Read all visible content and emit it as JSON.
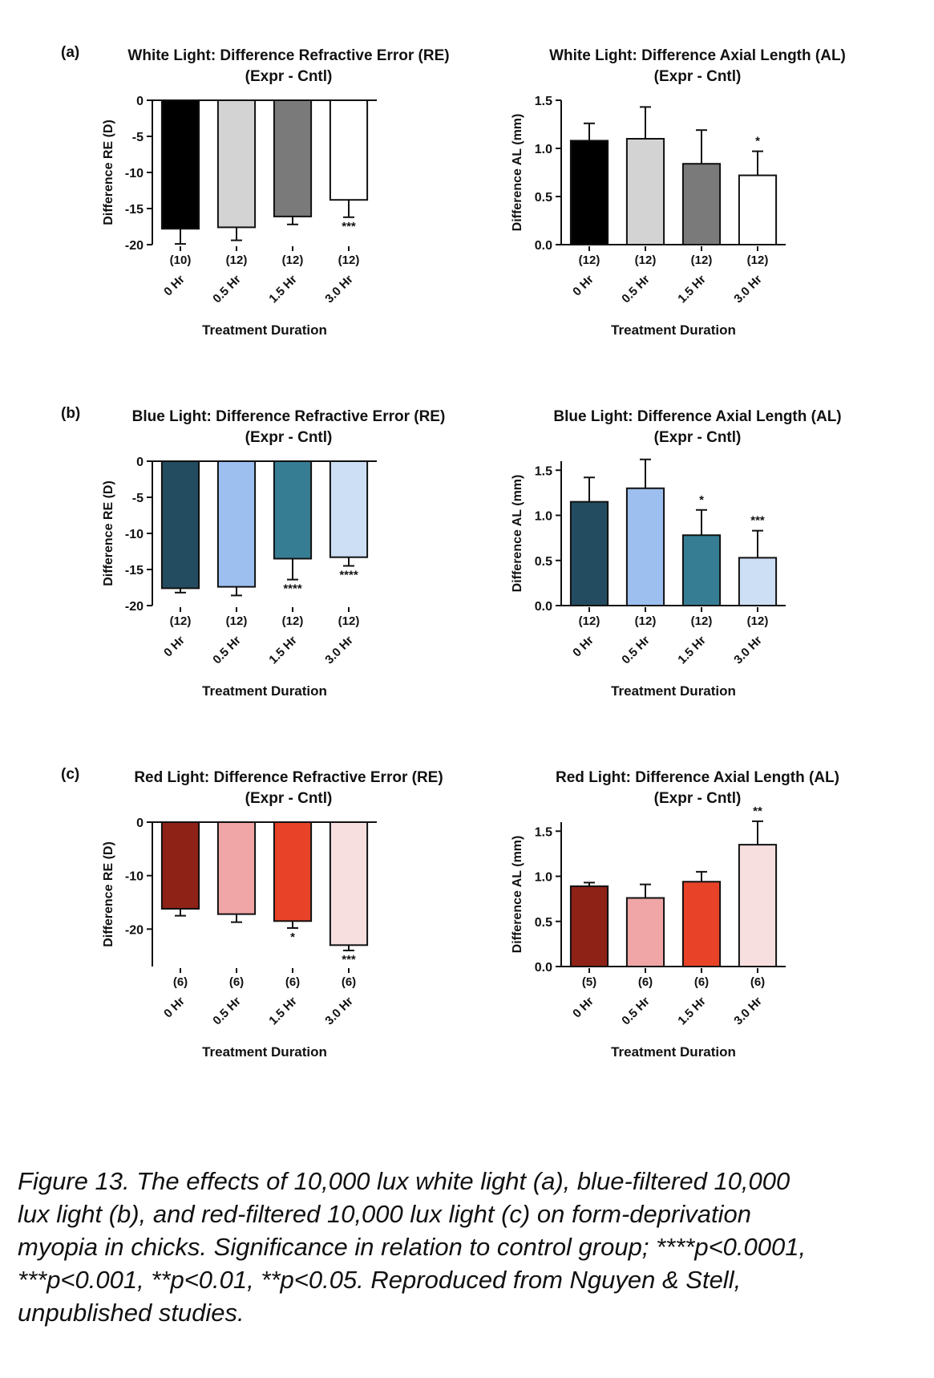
{
  "chart_data": [
    {
      "panel": "(a)",
      "type": "bar",
      "title": "White Light: Difference Refractive Error (RE)",
      "subtitle": "(Expr - Cntl)",
      "xlabel": "Treatment  Duration",
      "ylabel": "Difference RE (D)",
      "ylim": [
        -20,
        0
      ],
      "yticks": [
        0,
        -5,
        -10,
        -15,
        -20
      ],
      "categories": [
        "0 Hr",
        "0.5 Hr",
        "1.5 Hr",
        "3.0 Hr"
      ],
      "n_labels": [
        "(10)",
        "(12)",
        "(12)",
        "(12)"
      ],
      "values": [
        -17.8,
        -17.6,
        -16.1,
        -13.8
      ],
      "errors": [
        2.1,
        1.8,
        1.1,
        2.4
      ],
      "significance": [
        "",
        "",
        "",
        "***"
      ],
      "colors": [
        "#000000",
        "#d3d3d3",
        "#7a7a7a",
        "#ffffff"
      ]
    },
    {
      "type": "bar",
      "title": "White Light: Difference Axial Length (AL)",
      "subtitle": "(Expr - Cntl)",
      "xlabel": "Treatment  Duration",
      "ylabel": "Difference AL (mm)",
      "ylim": [
        0,
        1.5
      ],
      "yticks": [
        0.0,
        0.5,
        1.0,
        1.5
      ],
      "ytick_labels": [
        "0.0",
        "0.5",
        "1.0",
        "1.5"
      ],
      "categories": [
        "0 Hr",
        "0.5 Hr",
        "1.5 Hr",
        "3.0 Hr"
      ],
      "n_labels": [
        "(12)",
        "(12)",
        "(12)",
        "(12)"
      ],
      "values": [
        1.08,
        1.1,
        0.84,
        0.72
      ],
      "errors": [
        0.18,
        0.33,
        0.35,
        0.25
      ],
      "significance": [
        "",
        "",
        "",
        "*"
      ],
      "colors": [
        "#000000",
        "#d3d3d3",
        "#7a7a7a",
        "#ffffff"
      ]
    },
    {
      "panel": "(b)",
      "type": "bar",
      "title": "Blue Light: Difference Refractive Error (RE)",
      "subtitle": "(Expr -  Cntl)",
      "xlabel": "Treatment Duration",
      "ylabel": "Difference RE (D)",
      "ylim": [
        -20,
        0
      ],
      "yticks": [
        0,
        -5,
        -10,
        -15,
        -20
      ],
      "categories": [
        "0 Hr",
        "0.5 Hr",
        "1.5 Hr",
        "3.0 Hr"
      ],
      "n_labels": [
        "(12)",
        "(12)",
        "(12)",
        "(12)"
      ],
      "values": [
        -17.6,
        -17.4,
        -13.5,
        -13.3
      ],
      "errors": [
        0.6,
        1.2,
        2.9,
        1.2
      ],
      "significance": [
        "",
        "",
        "****",
        "****"
      ],
      "colors": [
        "#244c60",
        "#9dbff0",
        "#367d94",
        "#cddff5"
      ]
    },
    {
      "type": "bar",
      "title": "Blue Light: Difference Axial Length (AL)",
      "subtitle": "(Expr -  Cntl)",
      "xlabel": "Treatment Duration",
      "ylabel": "Difference AL (mm)",
      "ylim": [
        0,
        1.6
      ],
      "yticks": [
        0.0,
        0.5,
        1.0,
        1.5
      ],
      "ytick_labels": [
        "0.0",
        "0.5",
        "1.0",
        "1.5"
      ],
      "categories": [
        "0 Hr",
        "0.5 Hr",
        "1.5 Hr",
        "3.0 Hr"
      ],
      "n_labels": [
        "(12)",
        "(12)",
        "(12)",
        "(12)"
      ],
      "values": [
        1.15,
        1.3,
        0.78,
        0.53
      ],
      "errors": [
        0.27,
        0.32,
        0.28,
        0.3
      ],
      "significance": [
        "",
        "",
        "*",
        "***"
      ],
      "colors": [
        "#244c60",
        "#9dbff0",
        "#367d94",
        "#cddff5"
      ]
    },
    {
      "panel": "(c)",
      "type": "bar",
      "title": "Red Light: Difference Refractive Error (RE)",
      "subtitle": "(Expr - Cntl)",
      "xlabel": "Treatment Duration",
      "ylabel": "Difference RE (D)",
      "ylim": [
        -27,
        0
      ],
      "yticks": [
        0,
        -10,
        -20
      ],
      "categories": [
        "0 Hr",
        "0.5 Hr",
        "1.5 Hr",
        "3.0 Hr"
      ],
      "n_labels": [
        "(6)",
        "(6)",
        "(6)",
        "(6)"
      ],
      "values": [
        -16.2,
        -17.2,
        -18.5,
        -23.0
      ],
      "errors": [
        1.3,
        1.5,
        1.3,
        1.0
      ],
      "significance": [
        "",
        "",
        "*",
        "***"
      ],
      "colors": [
        "#8e2216",
        "#f0a6a6",
        "#e84328",
        "#f7dfe0"
      ]
    },
    {
      "type": "bar",
      "title": "Red Light: Difference Axial Length (AL)",
      "subtitle": "(Expr - Cntl)",
      "xlabel": "Treatment Duration",
      "ylabel": "Difference AL (mm)",
      "ylim": [
        0,
        1.6
      ],
      "yticks": [
        0.0,
        0.5,
        1.0,
        1.5
      ],
      "ytick_labels": [
        "0.0",
        "0.5",
        "1.0",
        "1.5"
      ],
      "categories": [
        "0 Hr",
        "0.5 Hr",
        "1.5 Hr",
        "3.0 Hr"
      ],
      "n_labels": [
        "(5)",
        "(6)",
        "(6)",
        "(6)"
      ],
      "values": [
        0.89,
        0.76,
        0.94,
        1.35
      ],
      "errors": [
        0.04,
        0.15,
        0.11,
        0.26
      ],
      "significance": [
        "",
        "",
        "",
        "**"
      ],
      "colors": [
        "#8e2216",
        "#f0a6a6",
        "#e84328",
        "#f7dfe0"
      ]
    }
  ],
  "caption": [
    "Figure 13. The effects of 10,000 lux white light (a), blue-filtered 10,000",
    "lux light (b), and red-filtered 10,000 lux light (c) on form-deprivation",
    "myopia in chicks. Significance in relation to control group; ****p<0.0001,",
    "   ***p<0.001, **p<0.01, **p<0.05. Reproduced from Nguyen & Stell,",
    "unpublished studies."
  ]
}
